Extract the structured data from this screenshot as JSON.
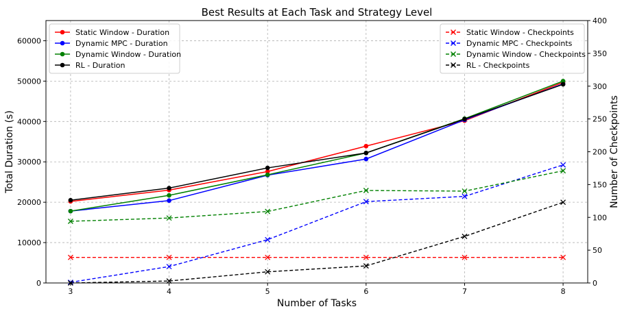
{
  "chart_data": {
    "type": "line",
    "title": "Best Results at Each Task and Strategy Level",
    "xlabel": "Number of Tasks",
    "ylabel_left": "Total Duration (s)",
    "ylabel_right": "Number of Checkpoints",
    "x": [
      3,
      4,
      5,
      6,
      7,
      8
    ],
    "x_ticks": [
      "3",
      "4",
      "5",
      "6",
      "7",
      "8"
    ],
    "xlim": [
      2.75,
      8.25
    ],
    "ylim_left": [
      0,
      65000
    ],
    "ylim_right": [
      0,
      400
    ],
    "y_ticks_left": [
      0,
      10000,
      20000,
      30000,
      40000,
      50000,
      60000
    ],
    "y_ticks_right": [
      0,
      50,
      100,
      150,
      200,
      250,
      300,
      350,
      400
    ],
    "grid": true,
    "legend_left_placement": "top-left",
    "legend_right_placement": "top-right",
    "duration_series": [
      {
        "name": "Static Window - Duration",
        "color": "#ff0000",
        "values": [
          20200,
          23000,
          27600,
          33900,
          40200,
          49700
        ]
      },
      {
        "name": "Dynamic MPC - Duration",
        "color": "#0000ff",
        "values": [
          17800,
          20400,
          26700,
          30700,
          40400,
          49300
        ]
      },
      {
        "name": "Dynamic Window - Duration",
        "color": "#008000",
        "values": [
          17800,
          21700,
          26800,
          32200,
          40700,
          50000
        ]
      },
      {
        "name": "RL - Duration",
        "color": "#000000",
        "values": [
          20500,
          23500,
          28500,
          32200,
          40600,
          49200
        ]
      }
    ],
    "checkpoint_series": [
      {
        "name": "Static Window - Checkpoints",
        "color": "#ff0000",
        "values": [
          39,
          39,
          39,
          39,
          39,
          39
        ]
      },
      {
        "name": "Dynamic MPC - Checkpoints",
        "color": "#0000ff",
        "values": [
          1,
          25,
          66,
          124,
          132,
          180
        ]
      },
      {
        "name": "Dynamic Window - Checkpoints",
        "color": "#008000",
        "values": [
          94,
          99,
          109,
          141,
          140,
          171
        ]
      },
      {
        "name": "RL - Checkpoints",
        "color": "#000000",
        "values": [
          0,
          3,
          17,
          26,
          71,
          123
        ]
      }
    ]
  }
}
